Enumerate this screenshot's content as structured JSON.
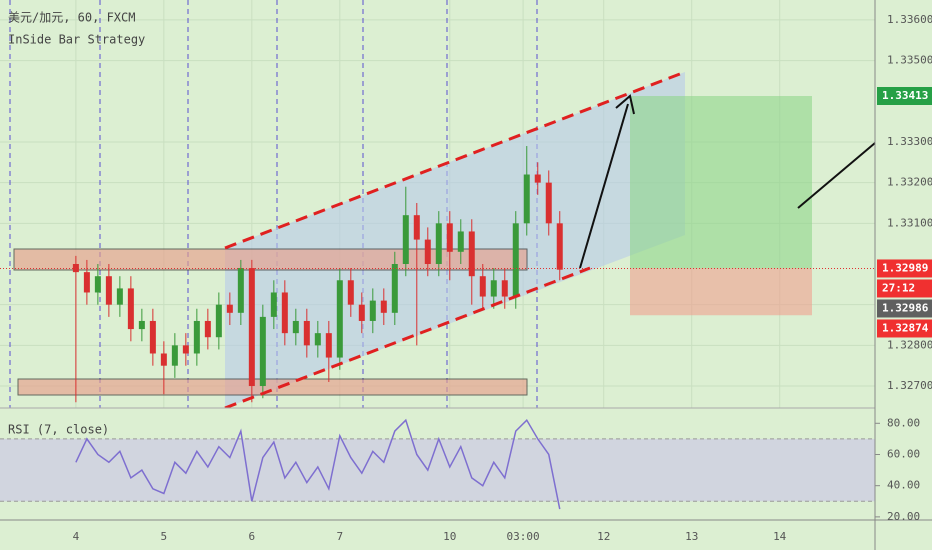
{
  "chart_data": {
    "type": "candlestick",
    "title": "美元/加元, 60, FXCM",
    "subtitle": "InSide Bar Strategy",
    "up_color": "#3a9a3a",
    "down_color": "#d93030",
    "x": [
      0,
      3,
      6,
      9,
      12,
      15,
      18,
      21,
      24,
      27,
      30,
      33,
      36,
      39,
      42,
      45,
      48,
      51,
      54,
      57,
      60,
      63,
      66,
      69,
      72,
      75,
      78,
      81,
      84,
      87,
      90,
      93,
      96,
      99,
      102,
      105,
      108,
      111,
      114,
      117,
      120,
      123,
      126,
      129,
      132
    ],
    "open": [
      1.33,
      1.3298,
      1.3293,
      1.3297,
      1.329,
      1.3294,
      1.3284,
      1.3286,
      1.3278,
      1.3275,
      1.328,
      1.3278,
      1.3286,
      1.3282,
      1.329,
      1.3288,
      1.3299,
      1.327,
      1.3287,
      1.3293,
      1.3283,
      1.3286,
      1.328,
      1.3283,
      1.3277,
      1.3296,
      1.329,
      1.3286,
      1.3291,
      1.3288,
      1.33,
      1.3312,
      1.3306,
      1.33,
      1.331,
      1.3303,
      1.3308,
      1.3297,
      1.3292,
      1.3296,
      1.3292,
      1.331,
      1.3322,
      1.332,
      1.331
    ],
    "high": [
      1.3302,
      1.3301,
      1.33,
      1.33,
      1.3297,
      1.3297,
      1.3289,
      1.3289,
      1.3281,
      1.3283,
      1.3283,
      1.3289,
      1.3289,
      1.3293,
      1.3293,
      1.3301,
      1.3301,
      1.329,
      1.3296,
      1.3296,
      1.3289,
      1.3289,
      1.3286,
      1.3286,
      1.3299,
      1.3299,
      1.3293,
      1.3294,
      1.3294,
      1.3303,
      1.3319,
      1.3315,
      1.3309,
      1.3313,
      1.3313,
      1.3311,
      1.3311,
      1.33,
      1.3299,
      1.3299,
      1.3313,
      1.3329,
      1.3325,
      1.3323,
      1.3313
    ],
    "low": [
      1.3266,
      1.329,
      1.329,
      1.3287,
      1.3287,
      1.3281,
      1.3281,
      1.3275,
      1.3268,
      1.3272,
      1.3275,
      1.3275,
      1.3279,
      1.3279,
      1.3285,
      1.3285,
      1.3266,
      1.3267,
      1.3284,
      1.328,
      1.328,
      1.3277,
      1.3277,
      1.3271,
      1.3274,
      1.3287,
      1.3283,
      1.3283,
      1.3285,
      1.3285,
      1.3297,
      1.328,
      1.3297,
      1.3297,
      1.3296,
      1.33,
      1.329,
      1.3289,
      1.3289,
      1.3289,
      1.3289,
      1.3307,
      1.3317,
      1.3307,
      1.3296
    ],
    "close": [
      1.3298,
      1.3293,
      1.3297,
      1.329,
      1.3294,
      1.3284,
      1.3286,
      1.3278,
      1.3275,
      1.328,
      1.3278,
      1.3286,
      1.3282,
      1.329,
      1.3288,
      1.3299,
      1.327,
      1.3287,
      1.3293,
      1.3283,
      1.3286,
      1.328,
      1.3283,
      1.3277,
      1.3296,
      1.329,
      1.3286,
      1.3291,
      1.3288,
      1.33,
      1.3312,
      1.3306,
      1.33,
      1.331,
      1.3303,
      1.3308,
      1.3297,
      1.3292,
      1.3296,
      1.3292,
      1.331,
      1.3322,
      1.332,
      1.331,
      1.32986
    ],
    "xlim": [
      -20.7,
      218
    ],
    "xticks": [
      {
        "value": 0,
        "label": "4"
      },
      {
        "value": 24,
        "label": "5"
      },
      {
        "value": 48,
        "label": "6"
      },
      {
        "value": 72,
        "label": "7"
      },
      {
        "value": 102,
        "label": "10"
      },
      {
        "value": 122,
        "label": "03:00"
      },
      {
        "value": 144,
        "label": "12"
      },
      {
        "value": 168,
        "label": "13"
      },
      {
        "value": 192,
        "label": "14"
      }
    ],
    "ylim": [
      1.32646,
      1.33649
    ],
    "yticks": [
      {
        "value": 1.327,
        "label": "1.32700"
      },
      {
        "value": 1.328,
        "label": "1.32800"
      },
      {
        "value": 1.329,
        "label": "1.32900"
      },
      {
        "value": 1.331,
        "label": "1.33100"
      },
      {
        "value": 1.332,
        "label": "1.33200"
      },
      {
        "value": 1.333,
        "label": "1.33300"
      },
      {
        "value": 1.335,
        "label": "1.33500"
      },
      {
        "value": 1.336,
        "label": "1.33600"
      }
    ],
    "price_labels": [
      {
        "value": 1.33413,
        "color": "#26a046"
      },
      {
        "value": 1.32989,
        "color": "#f03030"
      },
      {
        "label": "27:12",
        "color": "#f03030"
      },
      {
        "value": 1.32986,
        "color": "#606060"
      },
      {
        "value": 1.32874,
        "color": "#f03030"
      }
    ],
    "rsi": {
      "title": "RSI (7, close)",
      "color": "#7e6fd0",
      "values": [
        55,
        70,
        60,
        55,
        62,
        45,
        50,
        38,
        35,
        55,
        48,
        62,
        52,
        65,
        58,
        75,
        30,
        58,
        68,
        45,
        55,
        42,
        52,
        38,
        72,
        58,
        48,
        62,
        55,
        75,
        82,
        60,
        50,
        70,
        52,
        65,
        45,
        40,
        55,
        45,
        75,
        82,
        70,
        60,
        25
      ],
      "ylim": [
        18,
        89.8
      ],
      "band": [
        30,
        70
      ],
      "yticks": [
        {
          "value": 20,
          "label": "20.00"
        },
        {
          "value": 40,
          "label": "40.00"
        },
        {
          "value": 60,
          "label": "60.00"
        },
        {
          "value": 80,
          "label": "80.00"
        }
      ]
    }
  }
}
